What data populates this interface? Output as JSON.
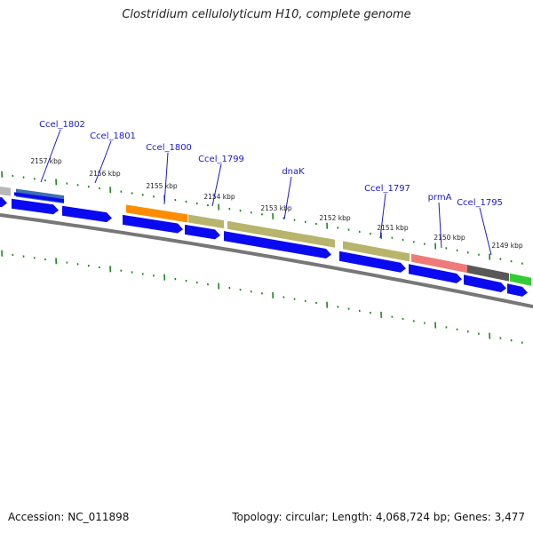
{
  "title": "Clostridium cellulolyticum H10, complete genome",
  "accession": "Accession: NC_011898",
  "stats": "Topology: circular; Length: 4,068,724 bp; Genes: 3,477",
  "colors": {
    "tick": "#1a8a1a",
    "backbone": "#777777",
    "cds_blue": "#0a0af0",
    "label_blue": "#1a1acc"
  },
  "scale_labels": [
    "2157 kbp",
    "2156 kbp",
    "2155 kbp",
    "2154 kbp",
    "2153 kbp",
    "2152 kbp",
    "2151 kbp",
    "2150 kbp",
    "2149 kbp"
  ],
  "gene_labels": [
    "Ccel_1802",
    "Ccel_1801",
    "Ccel_1800",
    "Ccel_1799",
    "dnaK",
    "Ccel_1797",
    "prmA",
    "Ccel_1795"
  ],
  "feature_colors": {
    "gray_light": "#b8b8b8",
    "steel_blue": "#3f6fb0",
    "orange": "#ff8c00",
    "khaki": "#b8b46c",
    "salmon": "#f07a7a",
    "dark_gray": "#585858",
    "green": "#33cc33"
  }
}
